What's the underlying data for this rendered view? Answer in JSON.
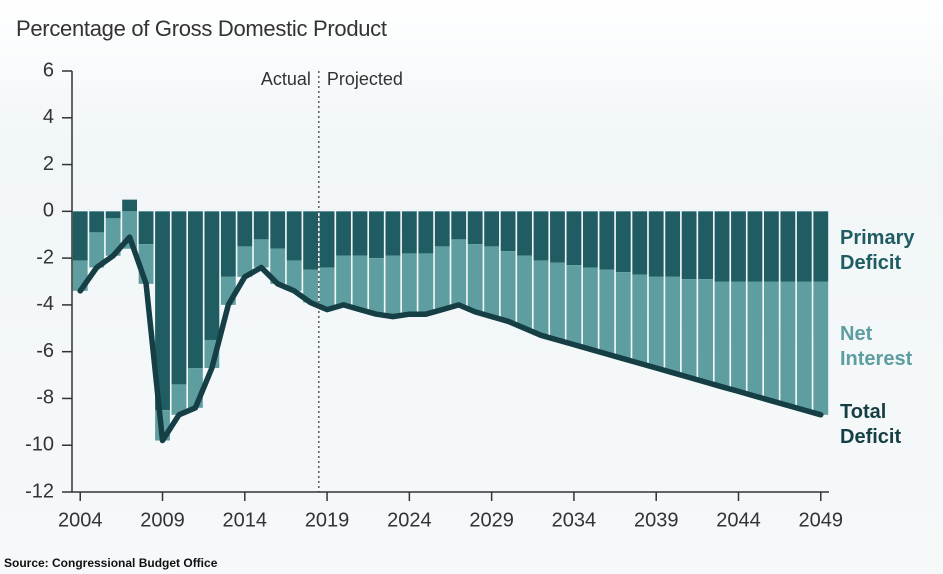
{
  "chart_data": {
    "type": "bar",
    "title": "Percentage of Gross Domestic Product",
    "source": "Source: Congressional Budget Office",
    "annotations": {
      "left": "Actual",
      "right": "Projected",
      "divider": 2018.5
    },
    "x": [
      2004,
      2005,
      2006,
      2007,
      2008,
      2009,
      2010,
      2011,
      2012,
      2013,
      2014,
      2015,
      2016,
      2017,
      2018,
      2019,
      2020,
      2021,
      2022,
      2023,
      2024,
      2025,
      2026,
      2027,
      2028,
      2029,
      2030,
      2031,
      2032,
      2033,
      2034,
      2035,
      2036,
      2037,
      2038,
      2039,
      2040,
      2041,
      2042,
      2043,
      2044,
      2045,
      2046,
      2047,
      2048,
      2049
    ],
    "series": [
      {
        "name": "Primary Deficit",
        "type": "bar",
        "color": "#1f5d63",
        "values": [
          -2.1,
          -0.9,
          -0.3,
          0.5,
          -1.4,
          -8.5,
          -7.4,
          -6.7,
          -5.5,
          -2.8,
          -1.5,
          -1.2,
          -1.6,
          -2.1,
          -2.5,
          -2.4,
          -1.9,
          -1.9,
          -2.0,
          -1.9,
          -1.8,
          -1.8,
          -1.5,
          -1.2,
          -1.4,
          -1.5,
          -1.7,
          -1.9,
          -2.1,
          -2.2,
          -2.3,
          -2.4,
          -2.5,
          -2.6,
          -2.7,
          -2.8,
          -2.8,
          -2.9,
          -2.9,
          -3.0,
          -3.0,
          -3.0,
          -3.0,
          -3.0,
          -3.0,
          -3.0
        ]
      },
      {
        "name": "Net Interest",
        "type": "bar",
        "color": "#5e9ea1",
        "values": [
          -1.3,
          -1.5,
          -1.6,
          -1.6,
          -1.7,
          -1.3,
          -1.3,
          -1.7,
          -1.2,
          -1.2,
          -1.3,
          -1.2,
          -1.5,
          -1.3,
          -1.4,
          -1.8,
          -2.1,
          -2.3,
          -2.4,
          -2.6,
          -2.6,
          -2.6,
          -2.7,
          -2.8,
          -2.9,
          -3.0,
          -3.0,
          -3.1,
          -3.2,
          -3.3,
          -3.4,
          -3.5,
          -3.6,
          -3.7,
          -3.8,
          -3.9,
          -4.1,
          -4.2,
          -4.4,
          -4.5,
          -4.7,
          -4.9,
          -5.1,
          -5.3,
          -5.5,
          -5.7
        ]
      },
      {
        "name": "Total Deficit",
        "type": "line",
        "color": "#153f44",
        "values": [
          -3.4,
          -2.4,
          -1.9,
          -1.1,
          -3.1,
          -9.8,
          -8.7,
          -8.4,
          -6.7,
          -4.0,
          -2.8,
          -2.4,
          -3.1,
          -3.4,
          -3.9,
          -4.2,
          -4.0,
          -4.2,
          -4.4,
          -4.5,
          -4.4,
          -4.4,
          -4.2,
          -4.0,
          -4.3,
          -4.5,
          -4.7,
          -5.0,
          -5.3,
          -5.5,
          -5.7,
          -5.9,
          -6.1,
          -6.3,
          -6.5,
          -6.7,
          -6.9,
          -7.1,
          -7.3,
          -7.5,
          -7.7,
          -7.9,
          -8.1,
          -8.3,
          -8.5,
          -8.7
        ]
      }
    ],
    "xlim": [
      2003.5,
      2049.5
    ],
    "xticks": [
      2004,
      2009,
      2014,
      2019,
      2024,
      2029,
      2034,
      2039,
      2044,
      2049
    ],
    "ylim": [
      -12,
      6
    ],
    "yticks": [
      -12,
      -10,
      -8,
      -6,
      -4,
      -2,
      0,
      2,
      4,
      6
    ]
  }
}
